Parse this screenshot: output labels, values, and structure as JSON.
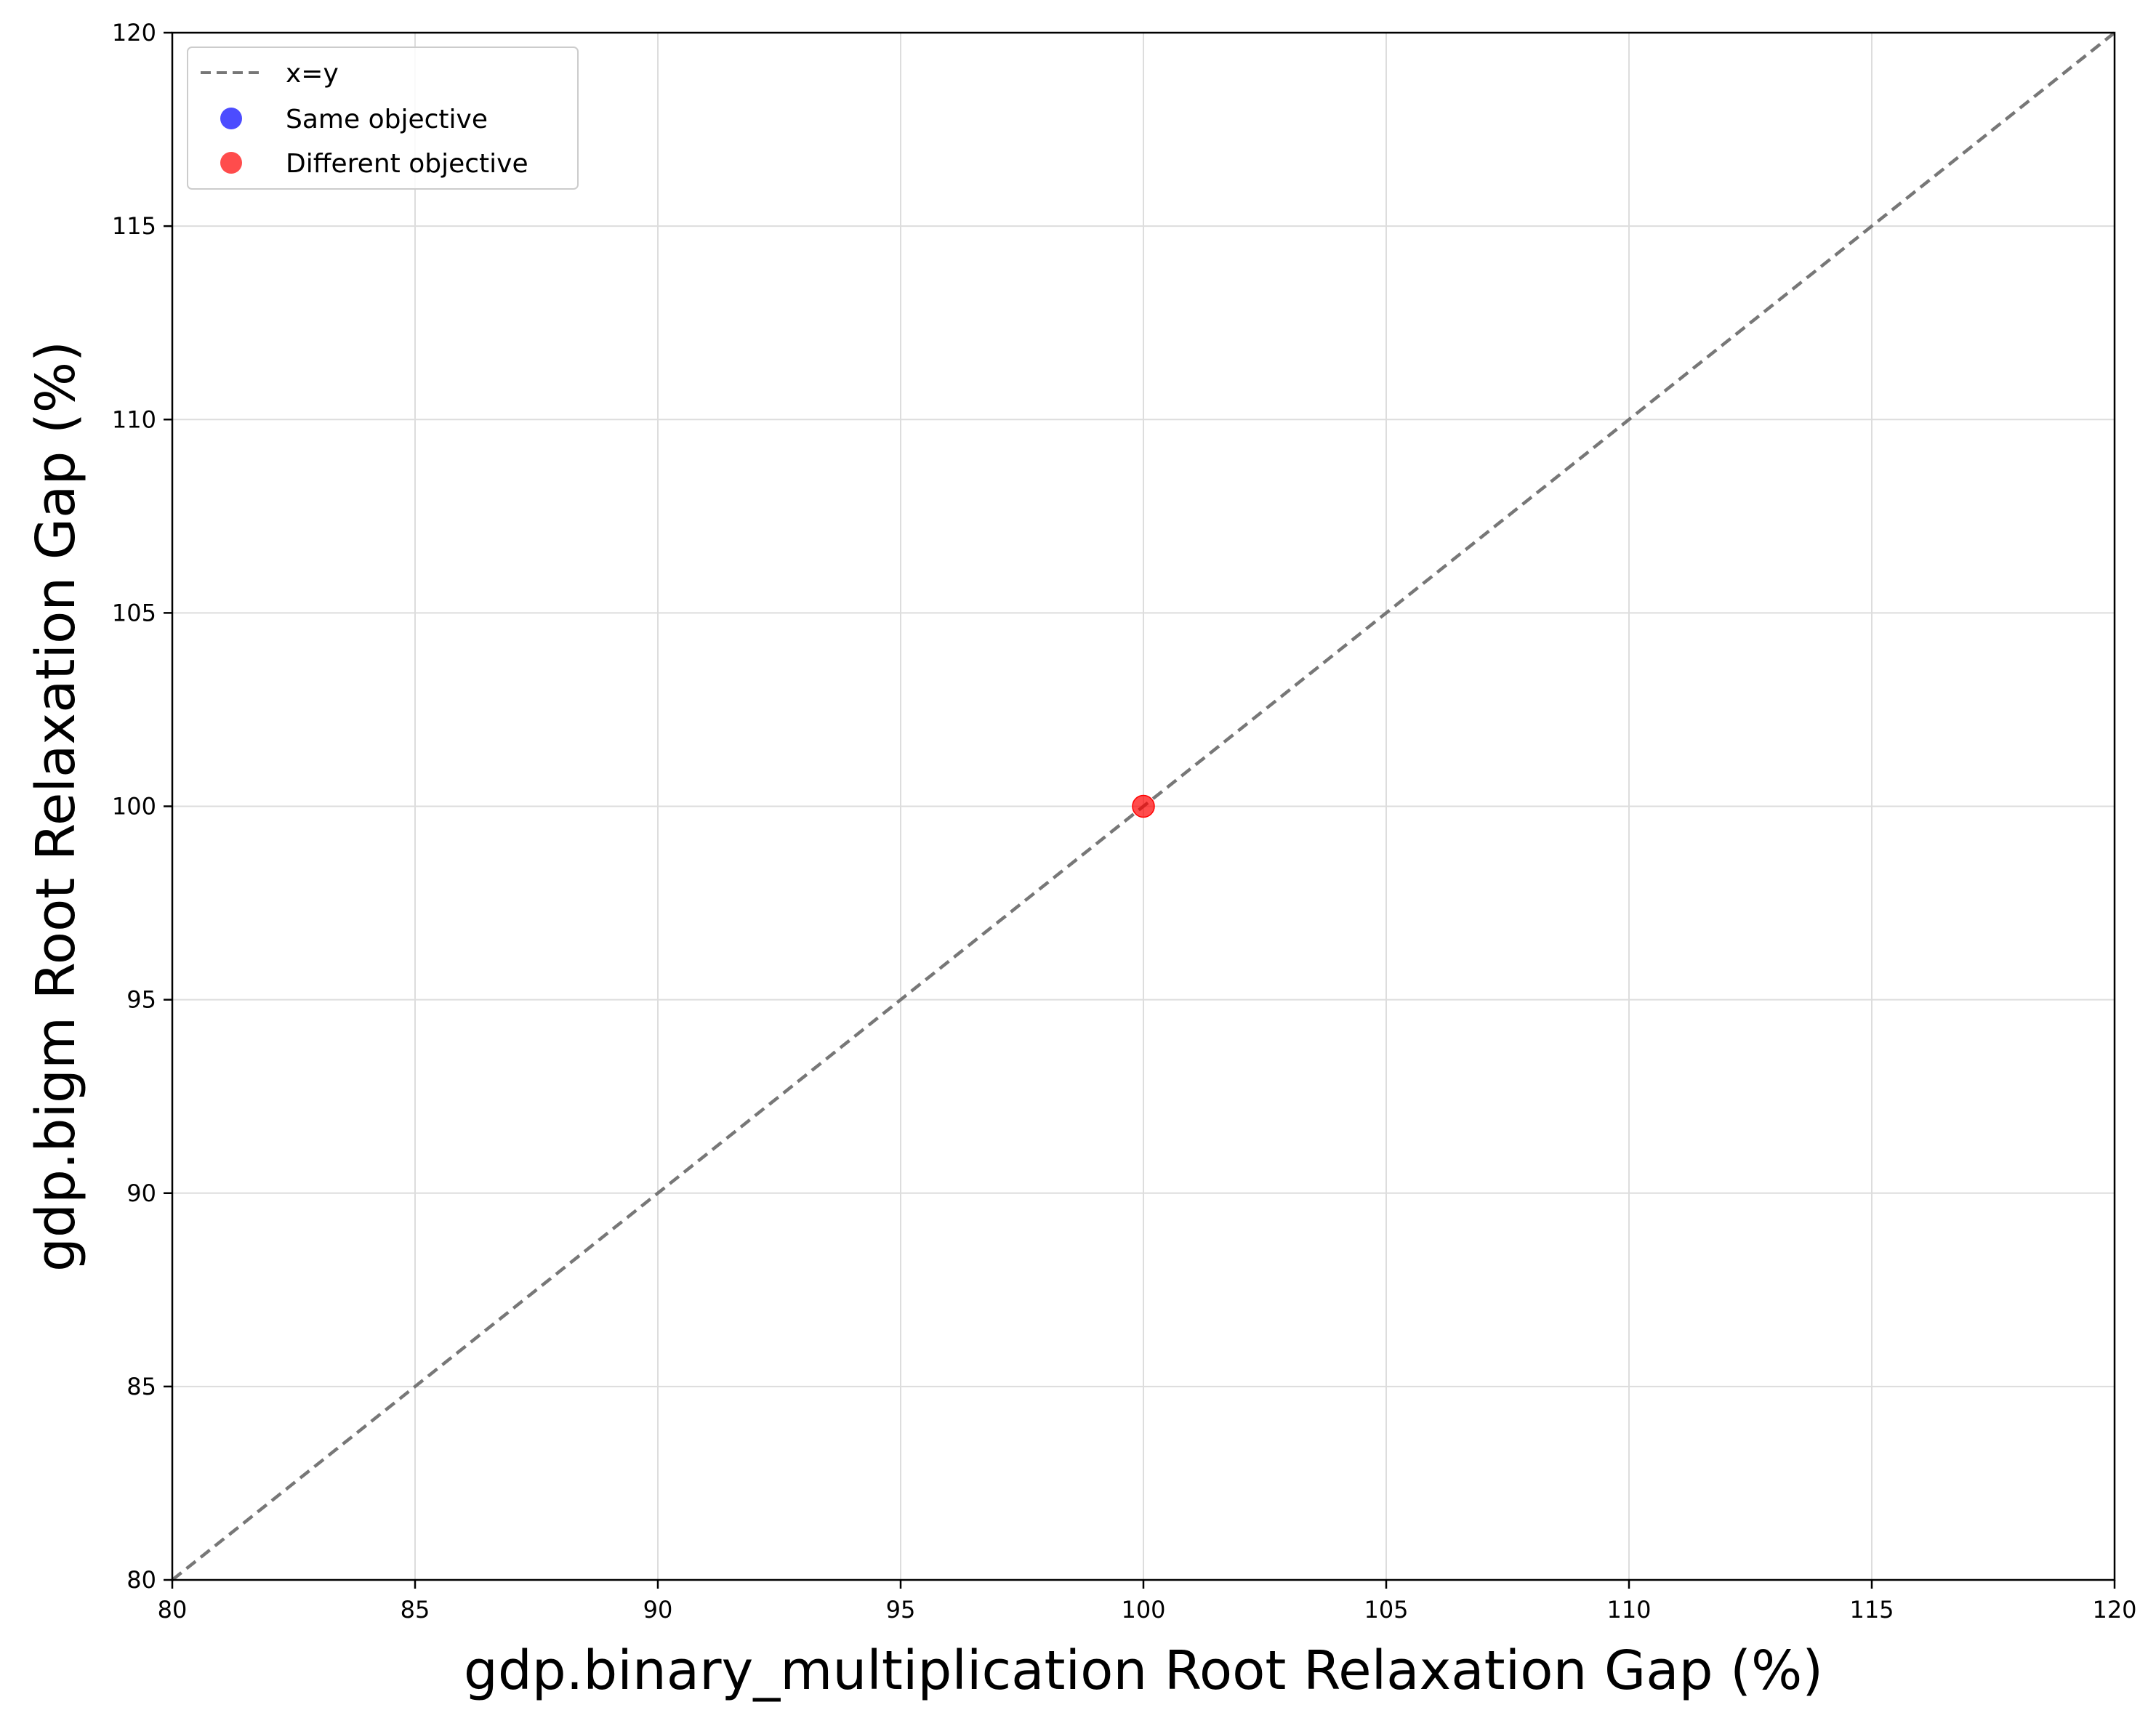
{
  "chart_data": {
    "type": "scatter",
    "title": "",
    "xlabel": "gdp.binary_multiplication Root Relaxation Gap (%)",
    "ylabel": "gdp.bigm Root Relaxation Gap (%)",
    "xlim": [
      80,
      120
    ],
    "ylim": [
      80,
      120
    ],
    "xticks": [
      "80",
      "85",
      "90",
      "95",
      "100",
      "105",
      "110",
      "115",
      "120"
    ],
    "yticks": [
      "80",
      "85",
      "90",
      "95",
      "100",
      "105",
      "110",
      "115",
      "120"
    ],
    "grid": true,
    "legend_position": "top-left",
    "reference_line": {
      "name": "x=y",
      "style": "dashed",
      "color": "#777777"
    },
    "series": [
      {
        "name": "Same objective",
        "color": "#0000ff",
        "points": []
      },
      {
        "name": "Different objective",
        "color": "#ff0000",
        "points": [
          [
            100,
            100
          ]
        ]
      }
    ]
  }
}
